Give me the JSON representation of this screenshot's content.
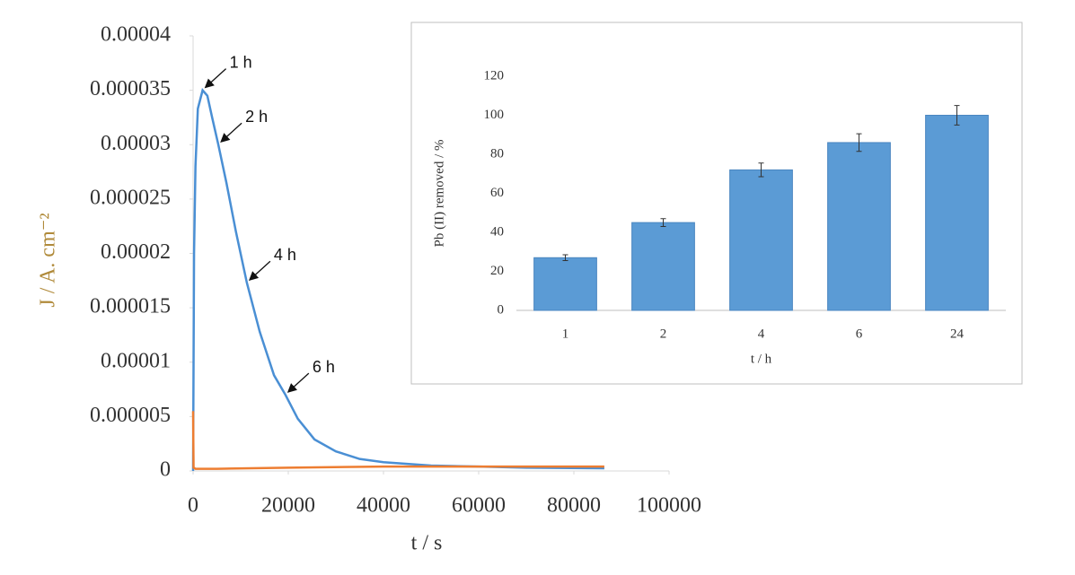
{
  "chart_data": [
    {
      "type": "line",
      "xlabel": "t / s",
      "ylabel": "J / A. cm⁻²",
      "xlim": [
        0,
        100000
      ],
      "xticks": [
        0,
        20000,
        40000,
        60000,
        80000,
        100000
      ],
      "ylim": [
        0,
        4e-05
      ],
      "yticks": [
        0,
        5e-06,
        1e-05,
        1.5e-05,
        2e-05,
        2.5e-05,
        3e-05,
        3.5e-05,
        4e-05
      ],
      "series": [
        {
          "color": "#4a8fd4",
          "x": [
            0,
            200,
            500,
            1000,
            2000,
            3000,
            4000,
            5300,
            7000,
            9000,
            11300,
            14000,
            17000,
            19400,
            22000,
            25500,
            30000,
            35000,
            40000,
            50000,
            60000,
            70000,
            86400
          ],
          "values": [
            0,
            2e-05,
            2.8e-05,
            3.33e-05,
            3.5e-05,
            3.45e-05,
            3.25e-05,
            3e-05,
            2.65e-05,
            2.2e-05,
            1.73e-05,
            1.28e-05,
            8.8e-06,
            7e-06,
            4.8e-06,
            2.9e-06,
            1.8e-06,
            1.1e-06,
            8e-07,
            5e-07,
            4e-07,
            3e-07,
            2.5e-07
          ]
        },
        {
          "color": "#ed7d31",
          "x": [
            0,
            100,
            500,
            5000,
            20000,
            40000,
            60000,
            86400
          ],
          "values": [
            5.5e-06,
            3e-07,
            2e-07,
            2e-07,
            3e-07,
            4e-07,
            4e-07,
            4e-07
          ]
        }
      ],
      "annotations": [
        {
          "text": "1 h",
          "x": 2000,
          "y": 3.5e-05
        },
        {
          "text": "2 h",
          "x": 5300,
          "y": 3e-05
        },
        {
          "text": "4 h",
          "x": 11300,
          "y": 1.73e-05
        },
        {
          "text": "6 h",
          "x": 19400,
          "y": 7e-06
        }
      ]
    },
    {
      "type": "bar",
      "xlabel": "t / h",
      "ylabel": "Pb (II) removed / %",
      "categories": [
        "1",
        "2",
        "4",
        "6",
        "24"
      ],
      "values": [
        27,
        45,
        72,
        86,
        100
      ],
      "errors": [
        1.5,
        2,
        3.5,
        4.5,
        5
      ],
      "color": "#5b9bd5",
      "ylim": [
        0,
        120
      ],
      "yticks": [
        0,
        20,
        40,
        60,
        80,
        100,
        120
      ]
    }
  ]
}
